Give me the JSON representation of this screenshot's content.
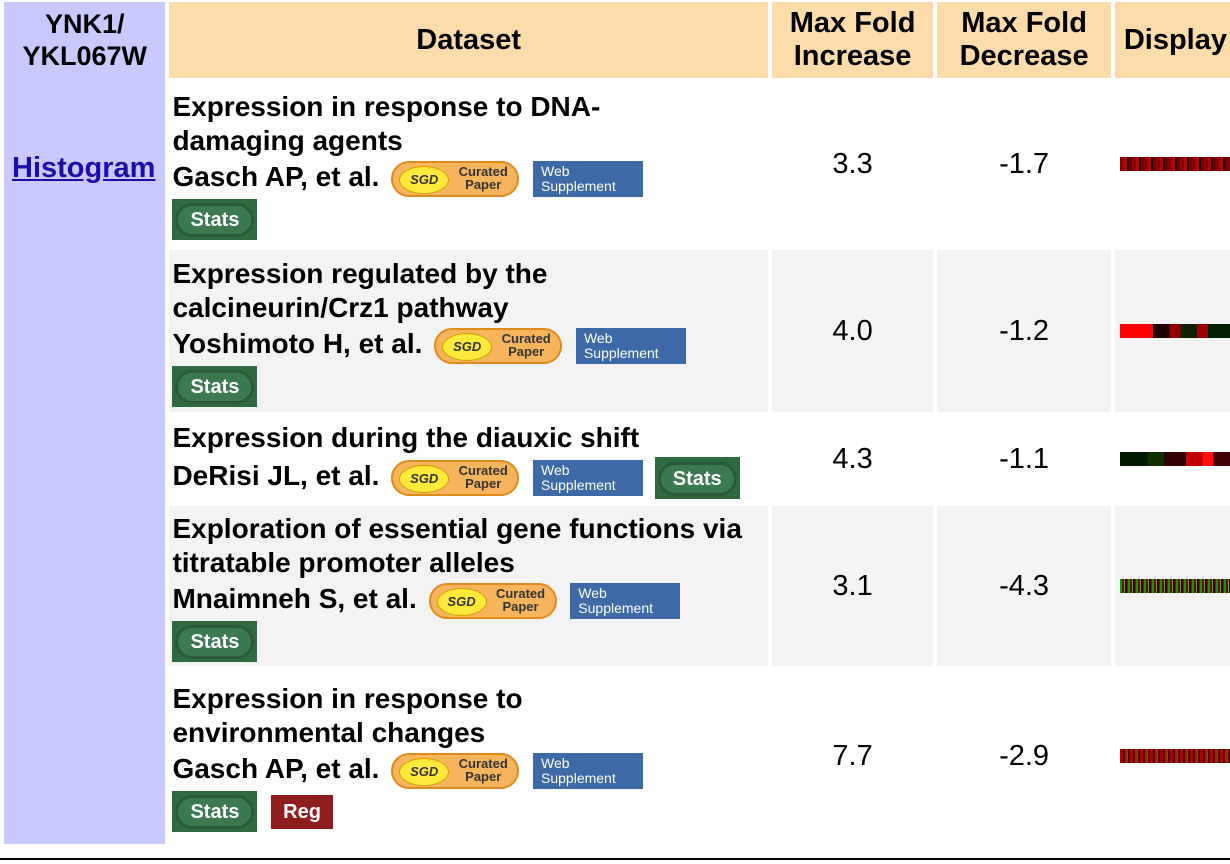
{
  "gene": {
    "name_line1": "YNK1/",
    "name_line2": "YKL067W",
    "histogram_link": "Histogram"
  },
  "header": {
    "dataset": "Dataset",
    "max_increase_line1": "Max Fold",
    "max_increase_line2": "Increase",
    "max_decrease_line1": "Max Fold",
    "max_decrease_line2": "Decrease",
    "display": "Display"
  },
  "badges": {
    "sgd_logo": "SGD",
    "sgd_line1": "Curated",
    "sgd_line2": "Paper",
    "web_line1": "Web",
    "web_line2": "Supplement",
    "stats": "Stats",
    "reg": "Reg"
  },
  "rows": [
    {
      "title": "Expression in response to DNA-damaging agents",
      "author": "Gasch AP, et al.",
      "increase": "3.3",
      "decrease": "-1.7"
    },
    {
      "title": "Expression regulated by the calcineurin/Crz1 pathway",
      "author": "Yoshimoto H, et al.",
      "increase": "4.0",
      "decrease": "-1.2"
    },
    {
      "title": "Expression during the diauxic shift",
      "author": "DeRisi JL, et al.",
      "increase": "4.3",
      "decrease": "-1.1"
    },
    {
      "title": "Exploration of essential gene functions via titratable promoter alleles",
      "author": "Mnaimneh S, et al.",
      "increase": "3.1",
      "decrease": "-4.3"
    },
    {
      "title": "Expression in response to environmental changes",
      "author": "Gasch AP, et al.",
      "increase": "7.7",
      "decrease": "-2.9"
    }
  ],
  "colors": {
    "header_bg": "#fbdcaa",
    "gene_bg": "#c9c9ff",
    "stats_green": "#2e6a3e",
    "web_blue": "#3d69a6",
    "reg_red": "#8f1d1d"
  }
}
